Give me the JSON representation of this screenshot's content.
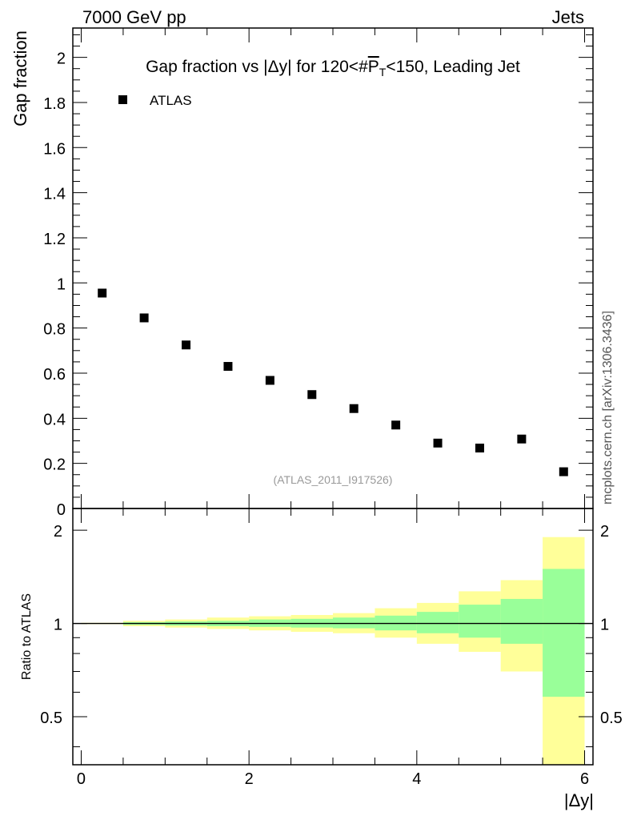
{
  "header": {
    "left": "7000 GeV pp",
    "right": "Jets"
  },
  "side_label": "mcplots.cern.ch [arXiv:1306.3436]",
  "watermark": "(ATLAS_2011_I917526)",
  "chart_data": [
    {
      "type": "scatter",
      "panel": "main",
      "title": "Gap fraction vs |Δy| for 120<#P̅T<150, Leading Jet",
      "title_parts": {
        "prefix": "Gap fraction vs |Δy| for 120<#",
        "p": "P",
        "sub": "T",
        "suffix": "<150, Leading Jet"
      },
      "ylabel": "Gap fraction",
      "xlim": [
        -0.1,
        6.1
      ],
      "ylim": [
        0,
        2.13
      ],
      "yticks": [
        0,
        0.2,
        0.4,
        0.6,
        0.8,
        1,
        1.2,
        1.4,
        1.6,
        1.8,
        2
      ],
      "ytick_labels": [
        "0",
        "0.2",
        "0.4",
        "0.6",
        "0.8",
        "1",
        "1.2",
        "1.4",
        "1.6",
        "1.8",
        "2"
      ],
      "legend_position": "top-left",
      "series": [
        {
          "name": "ATLAS",
          "marker": "square",
          "color": "#000000",
          "x": [
            0.25,
            0.75,
            1.25,
            1.75,
            2.25,
            2.75,
            3.25,
            3.75,
            4.25,
            4.75,
            5.25,
            5.75
          ],
          "y": [
            0.955,
            0.845,
            0.725,
            0.63,
            0.568,
            0.505,
            0.443,
            0.37,
            0.29,
            0.268,
            0.308,
            0.163
          ]
        }
      ]
    },
    {
      "type": "area",
      "panel": "ratio",
      "ylabel": "Ratio to ATLAS",
      "xlabel": "|Δy|",
      "xlim": [
        -0.1,
        6.1
      ],
      "ylim": [
        0.35,
        2.35
      ],
      "log_y": true,
      "xticks": [
        0,
        2,
        4,
        6
      ],
      "xtick_labels": [
        "0",
        "2",
        "4",
        "6"
      ],
      "yticks": [
        0.5,
        1,
        2
      ],
      "ytick_labels": [
        "0.5",
        "1",
        "2"
      ],
      "reference_line": 1,
      "bins": [
        [
          0.0,
          0.5
        ],
        [
          0.5,
          1.0
        ],
        [
          1.0,
          1.5
        ],
        [
          1.5,
          2.0
        ],
        [
          2.0,
          2.5
        ],
        [
          2.5,
          3.0
        ],
        [
          3.0,
          3.5
        ],
        [
          3.5,
          4.0
        ],
        [
          4.0,
          4.5
        ],
        [
          4.5,
          5.0
        ],
        [
          5.0,
          5.5
        ],
        [
          5.5,
          6.0
        ]
      ],
      "bands": [
        {
          "color": "#ffff99",
          "lo": [
            0.995,
            0.98,
            0.97,
            0.96,
            0.95,
            0.94,
            0.93,
            0.9,
            0.86,
            0.81,
            0.7,
            0.35
          ],
          "hi": [
            1.005,
            1.02,
            1.03,
            1.045,
            1.055,
            1.065,
            1.08,
            1.12,
            1.165,
            1.27,
            1.38,
            1.9
          ]
        },
        {
          "color": "#99ff99",
          "lo": [
            0.998,
            0.99,
            0.985,
            0.98,
            0.975,
            0.97,
            0.965,
            0.95,
            0.93,
            0.9,
            0.86,
            0.58
          ],
          "hi": [
            1.002,
            1.01,
            1.015,
            1.02,
            1.03,
            1.035,
            1.045,
            1.06,
            1.09,
            1.15,
            1.2,
            1.5
          ]
        }
      ]
    }
  ]
}
